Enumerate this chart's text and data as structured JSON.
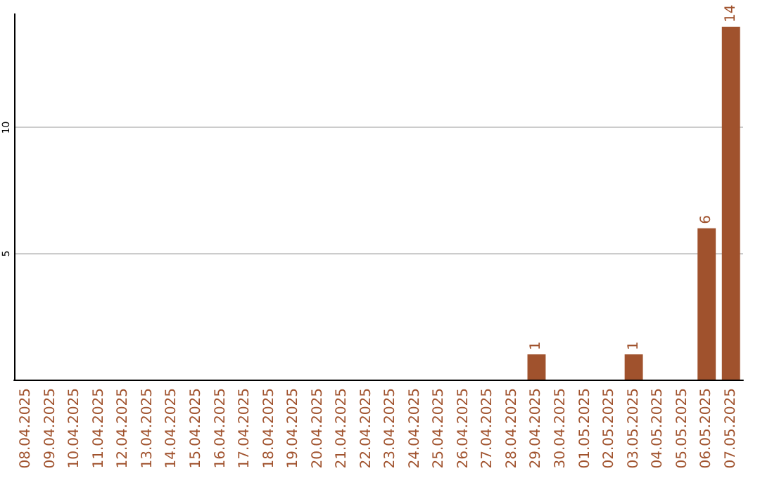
{
  "chart_data": {
    "type": "bar",
    "categories": [
      "08.04.2025",
      "09.04.2025",
      "10.04.2025",
      "11.04.2025",
      "12.04.2025",
      "13.04.2025",
      "14.04.2025",
      "15.04.2025",
      "16.04.2025",
      "17.04.2025",
      "18.04.2025",
      "19.04.2025",
      "20.04.2025",
      "21.04.2025",
      "22.04.2025",
      "23.04.2025",
      "24.04.2025",
      "25.04.2025",
      "26.04.2025",
      "27.04.2025",
      "28.04.2025",
      "29.04.2025",
      "30.04.2025",
      "01.05.2025",
      "02.05.2025",
      "03.05.2025",
      "04.05.2025",
      "05.05.2025",
      "06.05.2025",
      "07.05.2025"
    ],
    "values": [
      0,
      0,
      0,
      0,
      0,
      0,
      0,
      0,
      0,
      0,
      0,
      0,
      0,
      0,
      0,
      0,
      0,
      0,
      0,
      0,
      0,
      1,
      0,
      0,
      0,
      1,
      0,
      0,
      6,
      14
    ],
    "value_labels": [
      null,
      null,
      null,
      null,
      null,
      null,
      null,
      null,
      null,
      null,
      null,
      null,
      null,
      null,
      null,
      null,
      null,
      null,
      null,
      null,
      null,
      "1",
      null,
      null,
      null,
      "1",
      null,
      null,
      "6",
      "14"
    ],
    "color": "#a0522d",
    "ylim": [
      0,
      14.5
    ],
    "yticks": [
      5,
      10
    ],
    "grid": "y"
  }
}
